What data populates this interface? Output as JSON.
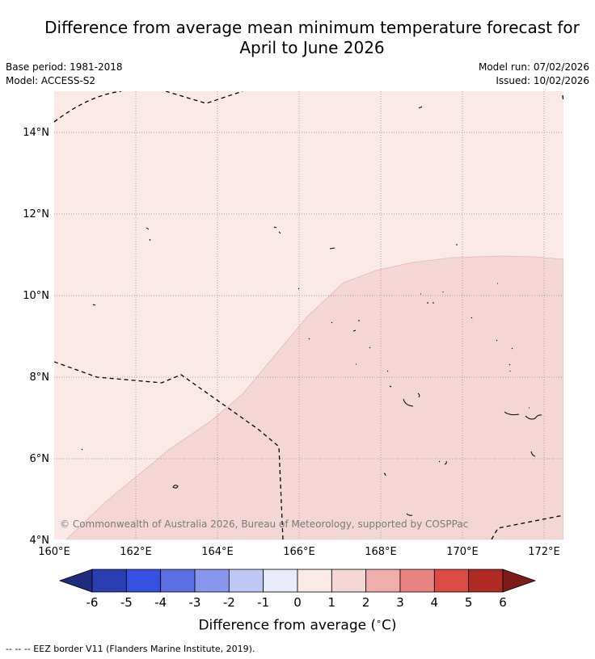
{
  "title": {
    "line1": "Difference from average mean minimum temperature forecast for",
    "line2": "April to June 2026"
  },
  "meta": {
    "base_period": "Base period: 1981-2018",
    "model": "Model: ACCESS-S2",
    "model_run": "Model run: 07/02/2026",
    "issued": "Issued: 10/02/2026"
  },
  "map": {
    "lon_range": [
      160.0,
      172.5
    ],
    "lat_range": [
      4.0,
      15.0
    ],
    "lon_ticks": [
      "160°E",
      "162°E",
      "164°E",
      "166°E",
      "168°E",
      "170°E",
      "172°E"
    ],
    "lat_ticks": [
      "4°N",
      "6°N",
      "8°N",
      "10°N",
      "12°N",
      "14°N"
    ],
    "regions": [
      {
        "category": "0 to 1",
        "color": "#fbe9e7"
      },
      {
        "category": "1 to 2",
        "color": "#f4d6d4"
      }
    ],
    "copyright": "© Commonwealth of Australia 2026, Bureau of Meteorology, supported by COSPPac"
  },
  "colorbar": {
    "ticks": [
      "-6",
      "-5",
      "-4",
      "-3",
      "-2",
      "-1",
      "0",
      "1",
      "2",
      "3",
      "4",
      "5",
      "6"
    ],
    "colors": [
      "#1f2c7c",
      "#2a3eb4",
      "#3550de",
      "#5b6fe4",
      "#8797ec",
      "#bfc7f4",
      "#e8ebfb",
      "#fbe9e7",
      "#f4d6d4",
      "#efaeaa",
      "#e88580",
      "#dc4c44",
      "#b02a24",
      "#7d1c1b"
    ],
    "label": "Difference from average (",
    "unit_symbol": "∘",
    "unit": "C)"
  },
  "footnote": "--  --  -- EEZ border V11 (Flanders Marine Institute, 2019)."
}
